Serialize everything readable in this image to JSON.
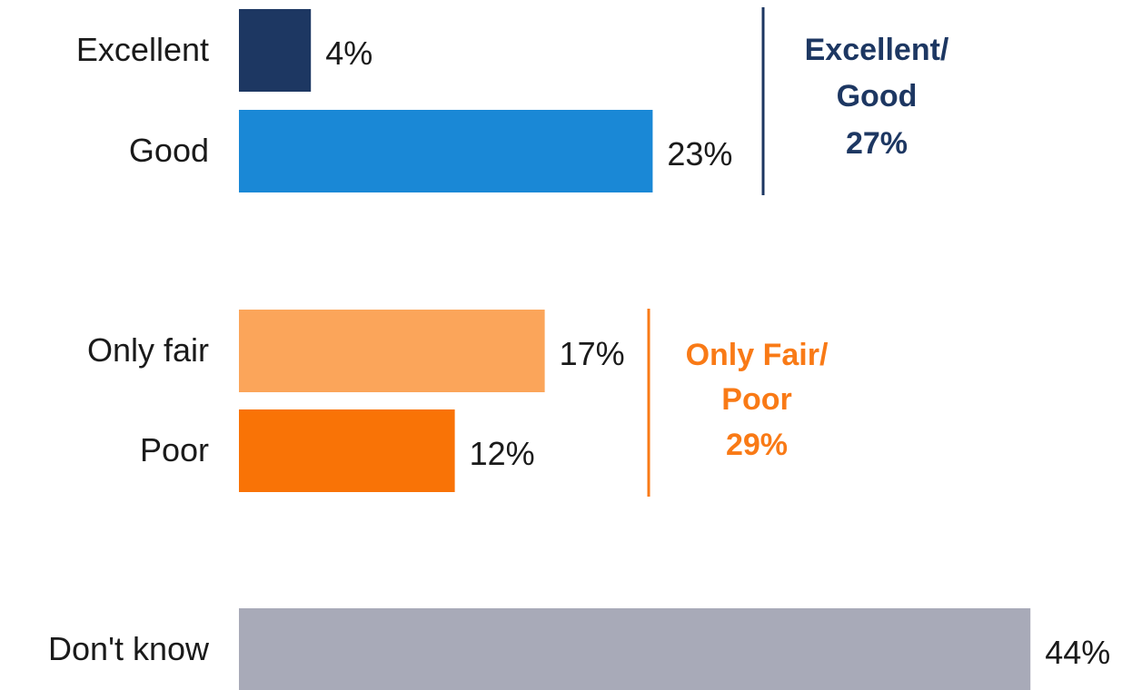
{
  "chart_data": {
    "type": "bar",
    "orientation": "horizontal",
    "categories": [
      "Excellent",
      "Good",
      "Only fair",
      "Poor",
      "Don't know"
    ],
    "values": [
      4,
      23,
      17,
      12,
      44
    ],
    "value_labels": [
      "4%",
      "23%",
      "17%",
      "12%",
      "44%"
    ],
    "colors": [
      "#1d3762",
      "#1a88d6",
      "#fba55a",
      "#f97306",
      "#a8aab8"
    ],
    "groups": [
      {
        "lines": [
          "Excellent/",
          "Good"
        ],
        "value": 27,
        "value_label": "27%",
        "color": "#1d3762"
      },
      {
        "lines": [
          "Only Fair/",
          "Poor"
        ],
        "value": 29,
        "value_label": "29%",
        "color": "#f97a16"
      }
    ]
  }
}
